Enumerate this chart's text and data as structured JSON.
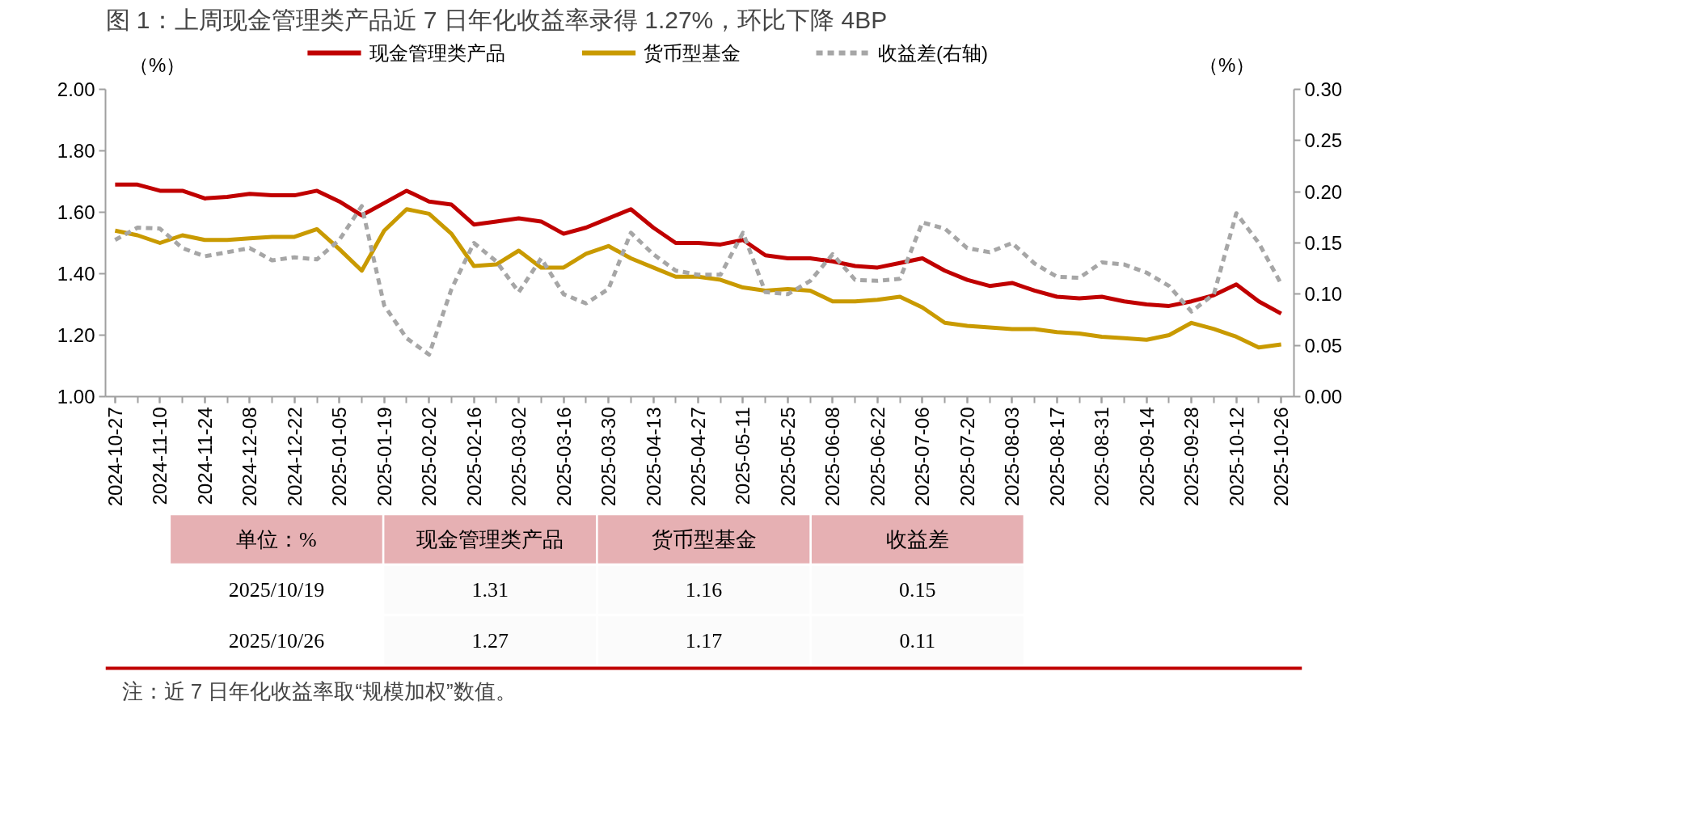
{
  "chart_data": {
    "type": "line",
    "title": "图 1：上周现金管理类产品近 7 日年化收益率录得 1.27%，环比下降 4BP",
    "ylabel": "（%）",
    "y2label": "（%）",
    "x": [
      "2024-10-27",
      "2024-11-03",
      "2024-11-10",
      "2024-11-17",
      "2024-11-24",
      "2024-12-01",
      "2024-12-08",
      "2024-12-15",
      "2024-12-22",
      "2024-12-29",
      "2025-01-05",
      "2025-01-12",
      "2025-01-19",
      "2025-01-26",
      "2025-02-02",
      "2025-02-09",
      "2025-02-16",
      "2025-02-23",
      "2025-03-02",
      "2025-03-09",
      "2025-03-16",
      "2025-03-23",
      "2025-03-30",
      "2025-04-06",
      "2025-04-13",
      "2025-04-20",
      "2025-04-27",
      "2025-05-04",
      "2025-05-11",
      "2025-05-18",
      "2025-05-25",
      "2025-06-01",
      "2025-06-08",
      "2025-06-15",
      "2025-06-22",
      "2025-06-29",
      "2025-07-06",
      "2025-07-13",
      "2025-07-20",
      "2025-07-27",
      "2025-08-03",
      "2025-08-10",
      "2025-08-17",
      "2025-08-24",
      "2025-08-31",
      "2025-09-07",
      "2025-09-14",
      "2025-09-21",
      "2025-09-28",
      "2025-10-05",
      "2025-10-12",
      "2025-10-19",
      "2025-10-26"
    ],
    "series": [
      {
        "name": "现金管理类产品",
        "color": "#c00000",
        "line_style": "solid",
        "values": [
          1.69,
          1.69,
          1.67,
          1.67,
          1.645,
          1.65,
          1.66,
          1.655,
          1.655,
          1.67,
          1.635,
          1.59,
          1.63,
          1.67,
          1.635,
          1.625,
          1.56,
          1.57,
          1.58,
          1.57,
          1.53,
          1.55,
          1.58,
          1.61,
          1.55,
          1.5,
          1.5,
          1.495,
          1.51,
          1.46,
          1.45,
          1.45,
          1.44,
          1.425,
          1.42,
          1.435,
          1.45,
          1.41,
          1.38,
          1.36,
          1.37,
          1.345,
          1.325,
          1.32,
          1.325,
          1.31,
          1.3,
          1.295,
          1.31,
          1.33,
          1.365,
          1.31,
          1.27
        ]
      },
      {
        "name": "货币型基金",
        "color": "#c99a00",
        "line_style": "solid",
        "values": [
          1.54,
          1.525,
          1.5,
          1.525,
          1.51,
          1.51,
          1.515,
          1.52,
          1.52,
          1.545,
          1.48,
          1.41,
          1.54,
          1.61,
          1.595,
          1.53,
          1.425,
          1.43,
          1.475,
          1.42,
          1.42,
          1.465,
          1.49,
          1.45,
          1.42,
          1.39,
          1.39,
          1.38,
          1.355,
          1.345,
          1.35,
          1.345,
          1.31,
          1.31,
          1.315,
          1.325,
          1.29,
          1.24,
          1.23,
          1.225,
          1.22,
          1.22,
          1.21,
          1.205,
          1.195,
          1.19,
          1.185,
          1.2,
          1.24,
          1.22,
          1.195,
          1.16,
          1.17
        ]
      },
      {
        "name": "收益差(右轴)",
        "color": "#a6a6a6",
        "line_style": "dashed",
        "axis": "y2",
        "values": [
          0.153,
          0.165,
          0.164,
          0.145,
          0.137,
          0.141,
          0.145,
          0.133,
          0.136,
          0.134,
          0.153,
          0.186,
          0.089,
          0.057,
          0.041,
          0.105,
          0.15,
          0.132,
          0.102,
          0.135,
          0.1,
          0.091,
          0.105,
          0.16,
          0.139,
          0.123,
          0.119,
          0.119,
          0.16,
          0.102,
          0.1,
          0.113,
          0.139,
          0.114,
          0.113,
          0.115,
          0.17,
          0.164,
          0.145,
          0.141,
          0.15,
          0.13,
          0.117,
          0.116,
          0.131,
          0.129,
          0.121,
          0.108,
          0.083,
          0.1,
          0.179,
          0.15,
          0.11
        ]
      }
    ],
    "xlim": [
      "2024-10-24",
      "2025-10-30"
    ],
    "xticks": [
      "2024-10-27",
      "2024-11-10",
      "2024-11-24",
      "2024-12-08",
      "2024-12-22",
      "2025-01-05",
      "2025-01-19",
      "2025-02-02",
      "2025-02-16",
      "2025-03-02",
      "2025-03-16",
      "2025-03-30",
      "2025-04-13",
      "2025-04-27",
      "2025-05-11",
      "2025-05-25",
      "2025-06-08",
      "2025-06-22",
      "2025-07-06",
      "2025-07-20",
      "2025-08-03",
      "2025-08-17",
      "2025-08-31",
      "2025-09-14",
      "2025-09-28",
      "2025-10-12",
      "2025-10-26"
    ],
    "ylim": [
      1.0,
      2.0
    ],
    "yticks": [
      {
        "value": 1.0,
        "label": "1.00"
      },
      {
        "value": 1.2,
        "label": "1.20"
      },
      {
        "value": 1.4,
        "label": "1.40"
      },
      {
        "value": 1.6,
        "label": "1.60"
      },
      {
        "value": 1.8,
        "label": "1.80"
      },
      {
        "value": 2.0,
        "label": "2.00"
      }
    ],
    "y2lim": [
      0.0,
      0.3
    ],
    "y2ticks": [
      {
        "value": 0.0,
        "label": "0.00"
      },
      {
        "value": 0.05,
        "label": "0.05"
      },
      {
        "value": 0.1,
        "label": "0.10"
      },
      {
        "value": 0.15,
        "label": "0.15"
      },
      {
        "value": 0.2,
        "label": "0.20"
      },
      {
        "value": 0.25,
        "label": "0.25"
      },
      {
        "value": 0.3,
        "label": "0.30"
      }
    ],
    "grid": false,
    "legend": "top",
    "annotations": [
      "单位：%",
      "现金管理类产品",
      "货币型基金",
      "收益差",
      "2025/10/19",
      "1.31",
      "1.16",
      "0.15",
      "2025/10/26",
      "1.27",
      "1.17",
      "0.11",
      "注：近 7 日年化收益率取“规模加权”数值。"
    ]
  }
}
